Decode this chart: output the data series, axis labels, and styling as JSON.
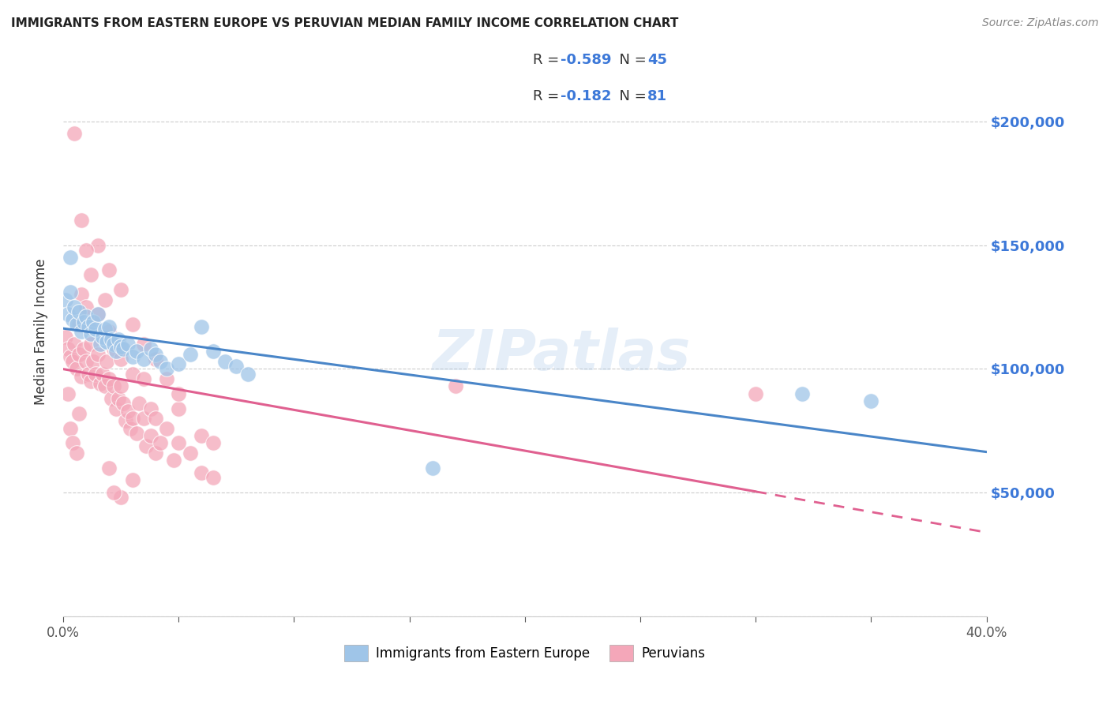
{
  "title": "IMMIGRANTS FROM EASTERN EUROPE VS PERUVIAN MEDIAN FAMILY INCOME CORRELATION CHART",
  "source": "Source: ZipAtlas.com",
  "ylabel": "Median Family Income",
  "yticks": [
    0,
    50000,
    100000,
    150000,
    200000
  ],
  "ytick_labels": [
    "",
    "$50,000",
    "$100,000",
    "$150,000",
    "$200,000"
  ],
  "xlim": [
    0.0,
    0.4
  ],
  "ylim": [
    0,
    230000
  ],
  "color_blue": "#9fc5e8",
  "color_pink": "#f4a7b9",
  "color_blue_line": "#4a86c8",
  "color_pink_line": "#e06090",
  "color_blue_text": "#3c78d8",
  "watermark": "ZIPatlas",
  "blue_points": [
    [
      0.001,
      128000
    ],
    [
      0.002,
      122000
    ],
    [
      0.003,
      131000
    ],
    [
      0.004,
      120000
    ],
    [
      0.005,
      125000
    ],
    [
      0.006,
      118000
    ],
    [
      0.007,
      123000
    ],
    [
      0.008,
      115000
    ],
    [
      0.009,
      119000
    ],
    [
      0.01,
      121000
    ],
    [
      0.011,
      117000
    ],
    [
      0.012,
      114000
    ],
    [
      0.013,
      119000
    ],
    [
      0.014,
      116000
    ],
    [
      0.015,
      122000
    ],
    [
      0.016,
      110000
    ],
    [
      0.017,
      113000
    ],
    [
      0.018,
      116000
    ],
    [
      0.019,
      111000
    ],
    [
      0.02,
      117000
    ],
    [
      0.021,
      112000
    ],
    [
      0.022,
      110000
    ],
    [
      0.023,
      107000
    ],
    [
      0.024,
      112000
    ],
    [
      0.025,
      109000
    ],
    [
      0.026,
      108000
    ],
    [
      0.028,
      110000
    ],
    [
      0.03,
      105000
    ],
    [
      0.032,
      107000
    ],
    [
      0.035,
      104000
    ],
    [
      0.038,
      108000
    ],
    [
      0.04,
      106000
    ],
    [
      0.042,
      103000
    ],
    [
      0.045,
      100000
    ],
    [
      0.05,
      102000
    ],
    [
      0.055,
      106000
    ],
    [
      0.06,
      117000
    ],
    [
      0.065,
      107000
    ],
    [
      0.07,
      103000
    ],
    [
      0.075,
      101000
    ],
    [
      0.08,
      98000
    ],
    [
      0.16,
      60000
    ],
    [
      0.32,
      90000
    ],
    [
      0.35,
      87000
    ],
    [
      0.003,
      145000
    ]
  ],
  "pink_points": [
    [
      0.001,
      113000
    ],
    [
      0.002,
      108000
    ],
    [
      0.003,
      105000
    ],
    [
      0.004,
      103000
    ],
    [
      0.005,
      110000
    ],
    [
      0.005,
      195000
    ],
    [
      0.006,
      100000
    ],
    [
      0.007,
      106000
    ],
    [
      0.007,
      118000
    ],
    [
      0.008,
      97000
    ],
    [
      0.008,
      130000
    ],
    [
      0.009,
      108000
    ],
    [
      0.01,
      103000
    ],
    [
      0.01,
      125000
    ],
    [
      0.011,
      98000
    ],
    [
      0.012,
      95000
    ],
    [
      0.012,
      110000
    ],
    [
      0.013,
      103000
    ],
    [
      0.014,
      98000
    ],
    [
      0.015,
      106000
    ],
    [
      0.015,
      122000
    ],
    [
      0.016,
      94000
    ],
    [
      0.017,
      98000
    ],
    [
      0.018,
      93000
    ],
    [
      0.019,
      103000
    ],
    [
      0.02,
      96000
    ],
    [
      0.02,
      115000
    ],
    [
      0.021,
      88000
    ],
    [
      0.022,
      93000
    ],
    [
      0.022,
      108000
    ],
    [
      0.023,
      84000
    ],
    [
      0.024,
      88000
    ],
    [
      0.025,
      93000
    ],
    [
      0.025,
      104000
    ],
    [
      0.026,
      86000
    ],
    [
      0.027,
      79000
    ],
    [
      0.028,
      83000
    ],
    [
      0.029,
      76000
    ],
    [
      0.03,
      80000
    ],
    [
      0.03,
      98000
    ],
    [
      0.032,
      74000
    ],
    [
      0.033,
      86000
    ],
    [
      0.035,
      80000
    ],
    [
      0.035,
      96000
    ],
    [
      0.036,
      69000
    ],
    [
      0.038,
      73000
    ],
    [
      0.038,
      84000
    ],
    [
      0.04,
      66000
    ],
    [
      0.04,
      80000
    ],
    [
      0.042,
      70000
    ],
    [
      0.045,
      76000
    ],
    [
      0.048,
      63000
    ],
    [
      0.05,
      70000
    ],
    [
      0.05,
      84000
    ],
    [
      0.055,
      66000
    ],
    [
      0.06,
      73000
    ],
    [
      0.06,
      58000
    ],
    [
      0.065,
      70000
    ],
    [
      0.065,
      56000
    ],
    [
      0.008,
      160000
    ],
    [
      0.012,
      138000
    ],
    [
      0.018,
      128000
    ],
    [
      0.025,
      132000
    ],
    [
      0.03,
      118000
    ],
    [
      0.035,
      110000
    ],
    [
      0.04,
      104000
    ],
    [
      0.045,
      96000
    ],
    [
      0.05,
      90000
    ],
    [
      0.015,
      150000
    ],
    [
      0.02,
      140000
    ],
    [
      0.01,
      148000
    ],
    [
      0.002,
      90000
    ],
    [
      0.003,
      76000
    ],
    [
      0.004,
      70000
    ],
    [
      0.006,
      66000
    ],
    [
      0.007,
      82000
    ],
    [
      0.02,
      60000
    ],
    [
      0.025,
      48000
    ],
    [
      0.022,
      50000
    ],
    [
      0.03,
      55000
    ],
    [
      0.3,
      90000
    ],
    [
      0.17,
      93000
    ]
  ]
}
